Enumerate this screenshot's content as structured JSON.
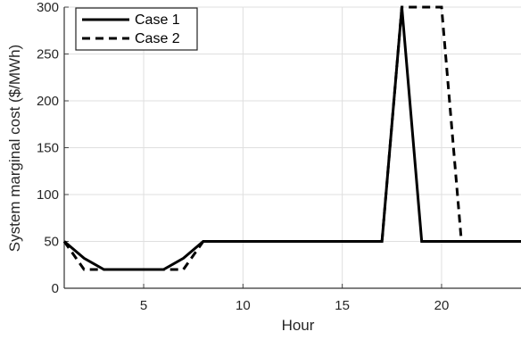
{
  "chart_data": {
    "type": "line",
    "xlabel": "Hour",
    "ylabel": "System marginal cost ($/MWh)",
    "xlim": [
      1,
      24
    ],
    "ylim": [
      0,
      300
    ],
    "x_ticks": [
      5,
      10,
      15,
      20
    ],
    "y_ticks": [
      0,
      50,
      100,
      150,
      200,
      250,
      300
    ],
    "grid": true,
    "legend_position": "top-left",
    "series": [
      {
        "name": "Case 1",
        "line_style": "solid",
        "color": "#000000",
        "x": [
          1,
          2,
          3,
          4,
          5,
          6,
          7,
          8,
          9,
          10,
          11,
          12,
          13,
          14,
          15,
          16,
          17,
          18,
          19,
          20,
          21,
          22,
          23,
          24
        ],
        "values": [
          50,
          32,
          20,
          20,
          20,
          20,
          32,
          50,
          50,
          50,
          50,
          50,
          50,
          50,
          50,
          50,
          50,
          300,
          50,
          50,
          50,
          50,
          50,
          50
        ]
      },
      {
        "name": "Case 2",
        "line_style": "dashed",
        "color": "#000000",
        "x": [
          1,
          2,
          3,
          4,
          5,
          6,
          7,
          8,
          9,
          10,
          11,
          12,
          13,
          14,
          15,
          16,
          17,
          18,
          19,
          20,
          21,
          22,
          23,
          24
        ],
        "values": [
          50,
          20,
          20,
          20,
          20,
          20,
          20,
          50,
          50,
          50,
          50,
          50,
          50,
          50,
          50,
          50,
          50,
          300,
          300,
          300,
          50,
          50,
          50,
          50
        ]
      }
    ]
  }
}
